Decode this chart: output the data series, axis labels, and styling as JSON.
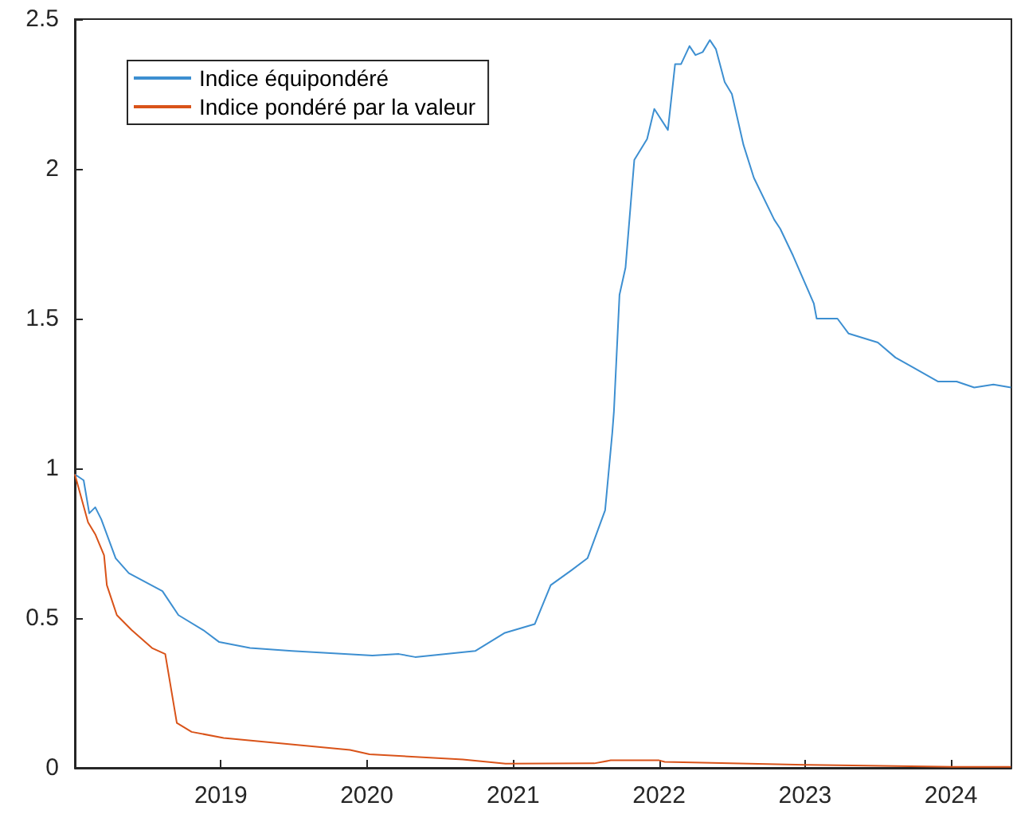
{
  "chart_data": {
    "type": "line",
    "legend": "top left",
    "marker": "none",
    "line_style": "solid",
    "grid": false,
    "xlim": [
      "2018-01-01",
      "2024-05-31"
    ],
    "xticks": [
      "2019",
      "2020",
      "2021",
      "2022",
      "2023",
      "2024"
    ],
    "ylim": [
      0,
      2.5
    ],
    "yticks": [
      0,
      0.5,
      1,
      1.5,
      2,
      2.5
    ],
    "series": [
      {
        "name": "Indice équipondéré",
        "color": "#3d8fd1",
        "x": [
          "2018-01-01",
          "2018-01-23",
          "2018-02-06",
          "2018-02-21",
          "2018-03-08",
          "2018-04-13",
          "2018-05-16",
          "2018-08-08",
          "2018-09-17",
          "2018-11-18",
          "2018-12-28",
          "2019-03-15",
          "2019-06-28",
          "2020-01-15",
          "2020-03-21",
          "2020-05-01",
          "2020-09-28",
          "2020-12-10",
          "2021-02-24",
          "2021-04-05",
          "2021-05-27",
          "2021-07-06",
          "2021-08-19",
          "2021-09-06",
          "2021-09-10",
          "2021-09-24",
          "2021-10-09",
          "2021-10-31",
          "2021-12-02",
          "2021-12-20",
          "2022-01-23",
          "2022-02-10",
          "2022-02-25",
          "2022-03-18",
          "2022-04-02",
          "2022-04-20",
          "2022-05-08",
          "2022-05-23",
          "2022-06-14",
          "2022-07-02",
          "2022-07-31",
          "2022-08-26",
          "2022-10-16",
          "2022-10-31",
          "2022-12-02",
          "2023-01-23",
          "2023-01-30",
          "2023-03-23",
          "2023-04-20",
          "2023-07-02",
          "2023-08-15",
          "2023-09-24",
          "2023-11-29",
          "2024-01-15",
          "2024-02-28",
          "2024-04-16",
          "2024-05-30"
        ],
        "values": [
          0.98,
          0.96,
          0.85,
          0.87,
          0.83,
          0.7,
          0.65,
          0.59,
          0.51,
          0.46,
          0.42,
          0.4,
          0.39,
          0.375,
          0.38,
          0.37,
          0.39,
          0.45,
          0.48,
          0.61,
          0.66,
          0.7,
          0.86,
          1.12,
          1.19,
          1.58,
          1.67,
          2.03,
          2.1,
          2.2,
          2.13,
          2.35,
          2.35,
          2.41,
          2.38,
          2.39,
          2.43,
          2.4,
          2.29,
          2.25,
          2.08,
          1.97,
          1.83,
          1.8,
          1.71,
          1.55,
          1.5,
          1.5,
          1.45,
          1.42,
          1.37,
          1.34,
          1.29,
          1.29,
          1.27,
          1.28,
          1.27
        ]
      },
      {
        "name": "Indice pondéré par la valeur",
        "color": "#d95319",
        "x": [
          "2018-01-01",
          "2018-02-03",
          "2018-02-21",
          "2018-03-15",
          "2018-03-22",
          "2018-04-16",
          "2018-05-23",
          "2018-07-13",
          "2018-08-15",
          "2018-09-13",
          "2018-10-20",
          "2019-01-08",
          "2019-11-20",
          "2020-01-08",
          "2020-08-28",
          "2020-12-13",
          "2021-07-23",
          "2021-09-02",
          "2022-01-01",
          "2022-01-15",
          "2023-01-01",
          "2024-01-08",
          "2024-05-30"
        ],
        "values": [
          0.98,
          0.82,
          0.78,
          0.71,
          0.61,
          0.51,
          0.46,
          0.4,
          0.38,
          0.15,
          0.12,
          0.1,
          0.06,
          0.045,
          0.028,
          0.014,
          0.015,
          0.025,
          0.025,
          0.02,
          0.01,
          0.003,
          0.003
        ]
      }
    ]
  }
}
